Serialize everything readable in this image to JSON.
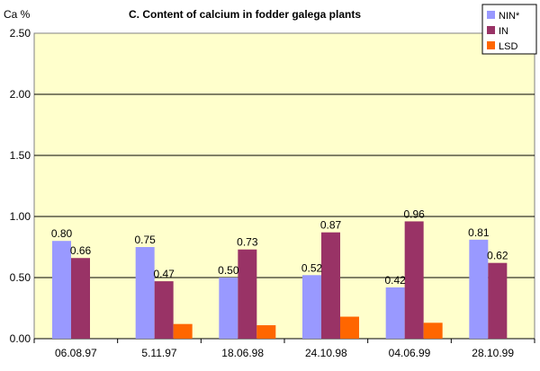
{
  "chart_data": {
    "type": "bar",
    "title": "C. Content of calcium in fodder galega plants",
    "ylabel": "Ca %",
    "xlabel": "",
    "ylim": [
      0,
      2.5
    ],
    "yticks": [
      "0.00",
      "0.50",
      "1.00",
      "1.50",
      "2.00",
      "2.50"
    ],
    "categories": [
      "06.08.97",
      "5.11.97",
      "18.06.98",
      "24.10.98",
      "04.06.99",
      "28.10.99"
    ],
    "series": [
      {
        "name": "NIN*",
        "color": "#9999ff",
        "values": [
          0.8,
          0.75,
          0.5,
          0.52,
          0.42,
          0.81
        ],
        "labels": [
          "0.80",
          "0.75",
          "0.50",
          "0.52",
          "0.42",
          "0.81"
        ]
      },
      {
        "name": "IN",
        "color": "#993366",
        "values": [
          0.66,
          0.47,
          0.73,
          0.87,
          0.96,
          0.62
        ],
        "labels": [
          "0.66",
          "0.47",
          "0.73",
          "0.87",
          "0.96",
          "0.62"
        ]
      },
      {
        "name": "LSD",
        "color": "#ff6600",
        "values": [
          null,
          0.12,
          0.11,
          0.18,
          0.13,
          null
        ],
        "labels": [
          null,
          null,
          null,
          null,
          null,
          null
        ]
      }
    ],
    "grid": true,
    "plot_background": "#ffffcc",
    "legend_position": "top-right"
  }
}
